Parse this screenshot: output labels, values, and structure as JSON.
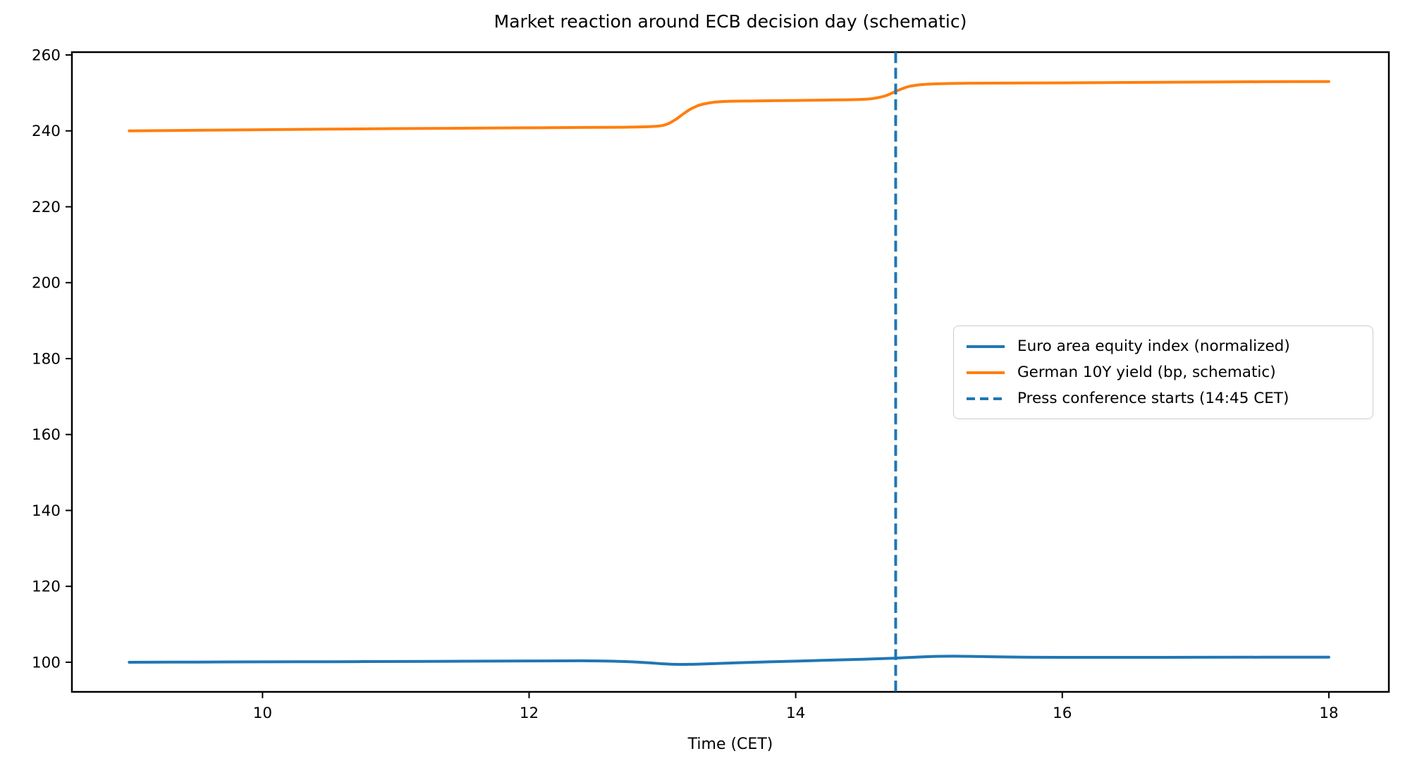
{
  "chart_data": {
    "type": "line",
    "title": "Market reaction around ECB decision day (schematic)",
    "xlabel": "Time (CET)",
    "ylabel": "",
    "xlim": [
      8.57,
      18.45
    ],
    "ylim": [
      92.2,
      260.74
    ],
    "xticks": [
      10,
      12,
      14,
      16,
      18
    ],
    "yticks": [
      100,
      120,
      140,
      160,
      180,
      200,
      220,
      240,
      260
    ],
    "grid": false,
    "legend_position": "center right",
    "series": [
      {
        "name": "Euro area equity index (normalized)",
        "color": "#1f77b4",
        "style": "solid",
        "points": [
          [
            9.0,
            100.0
          ],
          [
            9.5,
            100.05
          ],
          [
            10.0,
            100.1
          ],
          [
            10.5,
            100.15
          ],
          [
            11.0,
            100.2
          ],
          [
            11.5,
            100.28
          ],
          [
            12.0,
            100.35
          ],
          [
            12.4,
            100.38
          ],
          [
            12.7,
            100.2
          ],
          [
            12.9,
            99.85
          ],
          [
            13.0,
            99.6
          ],
          [
            13.1,
            99.45
          ],
          [
            13.2,
            99.45
          ],
          [
            13.35,
            99.6
          ],
          [
            13.6,
            99.9
          ],
          [
            13.9,
            100.2
          ],
          [
            14.2,
            100.5
          ],
          [
            14.5,
            100.8
          ],
          [
            14.75,
            101.1
          ],
          [
            14.9,
            101.35
          ],
          [
            15.05,
            101.55
          ],
          [
            15.2,
            101.6
          ],
          [
            15.4,
            101.5
          ],
          [
            15.7,
            101.35
          ],
          [
            16.0,
            101.3
          ],
          [
            16.5,
            101.3
          ],
          [
            17.0,
            101.32
          ],
          [
            17.5,
            101.33
          ],
          [
            18.0,
            101.35
          ]
        ]
      },
      {
        "name": "German 10Y yield (bp, schematic)",
        "color": "#ff7f0e",
        "style": "solid",
        "points": [
          [
            9.0,
            240.0
          ],
          [
            9.5,
            240.15
          ],
          [
            10.0,
            240.3
          ],
          [
            10.5,
            240.45
          ],
          [
            11.0,
            240.6
          ],
          [
            11.5,
            240.7
          ],
          [
            12.0,
            240.8
          ],
          [
            12.4,
            240.9
          ],
          [
            12.7,
            240.95
          ],
          [
            12.9,
            241.1
          ],
          [
            13.0,
            241.4
          ],
          [
            13.05,
            242.0
          ],
          [
            13.1,
            243.0
          ],
          [
            13.15,
            244.3
          ],
          [
            13.2,
            245.5
          ],
          [
            13.25,
            246.4
          ],
          [
            13.3,
            247.0
          ],
          [
            13.4,
            247.6
          ],
          [
            13.5,
            247.8
          ],
          [
            13.7,
            247.9
          ],
          [
            14.0,
            248.0
          ],
          [
            14.2,
            248.1
          ],
          [
            14.4,
            248.2
          ],
          [
            14.55,
            248.4
          ],
          [
            14.65,
            249.0
          ],
          [
            14.7,
            249.6
          ],
          [
            14.75,
            250.4
          ],
          [
            14.8,
            251.1
          ],
          [
            14.85,
            251.7
          ],
          [
            14.95,
            252.2
          ],
          [
            15.1,
            252.45
          ],
          [
            15.3,
            252.55
          ],
          [
            15.6,
            252.6
          ],
          [
            16.0,
            252.65
          ],
          [
            16.5,
            252.75
          ],
          [
            17.0,
            252.85
          ],
          [
            17.5,
            252.95
          ],
          [
            18.0,
            253.0
          ]
        ]
      }
    ],
    "vline": {
      "x": 14.75,
      "label": "Press conference starts (14:45 CET)",
      "color": "#1f77b4",
      "style": "dashed"
    }
  }
}
